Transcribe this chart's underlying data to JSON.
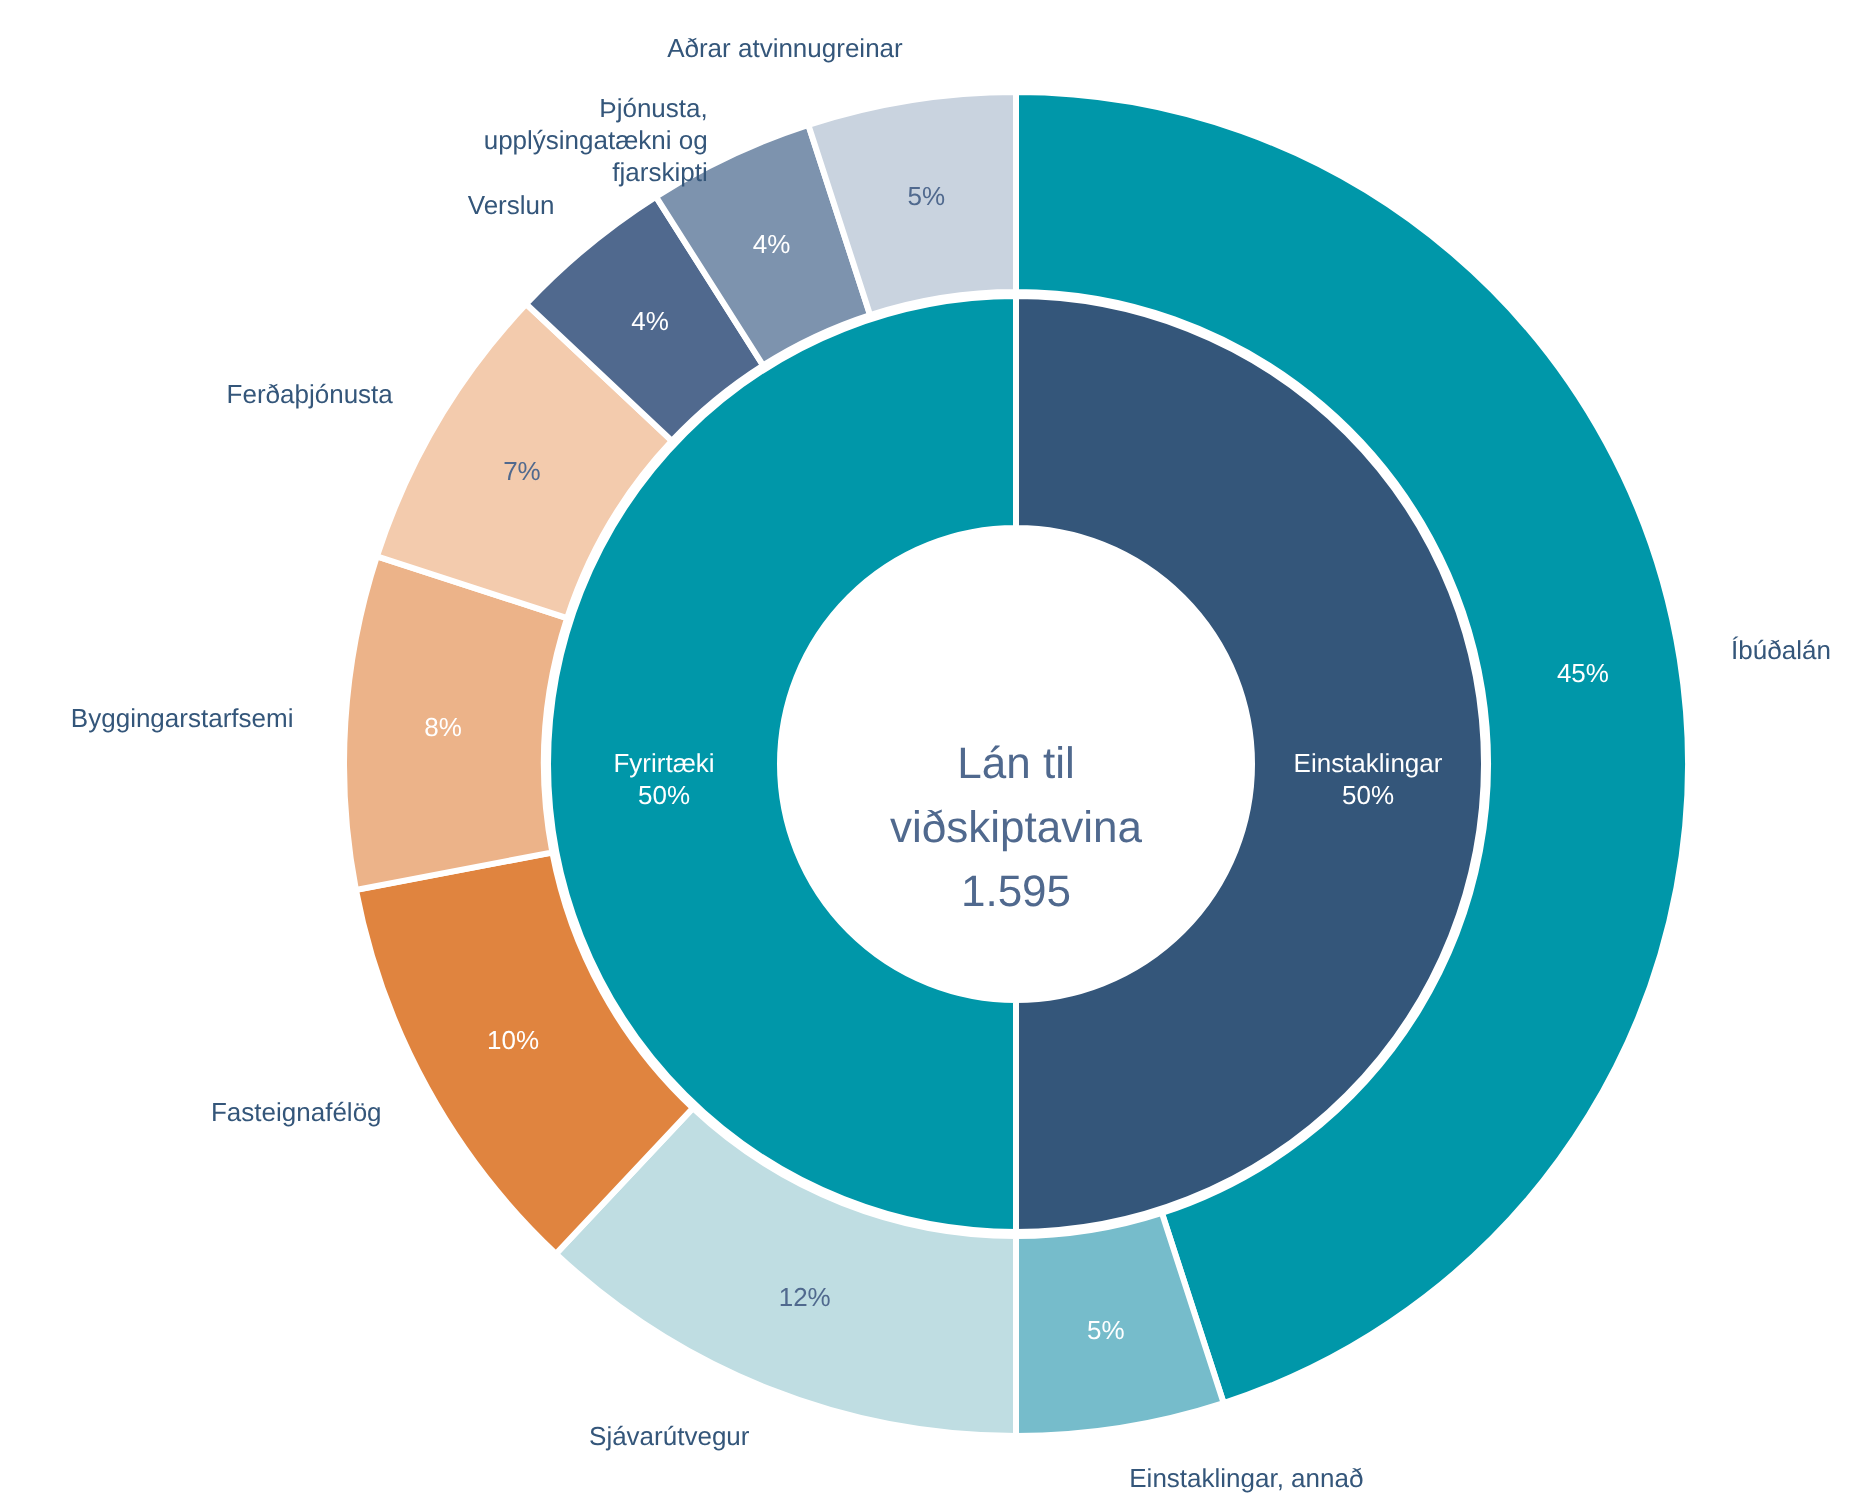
{
  "chart_data": [
    {
      "type": "donut",
      "categories": [
        "Íbúðalán",
        "Einstaklingar, annað",
        "Sjávarútvegur",
        "Fasteignafélög",
        "Byggingarstarfsemi",
        "Ferðaþjónusta",
        "Verslun",
        "Þjónusta, upplýsingatækni og fjarskipti",
        "Aðrar atvinnugreinar"
      ],
      "values": [
        45,
        5,
        12,
        10,
        8,
        7,
        4,
        4,
        5
      ],
      "value_labels": [
        "45%",
        "5%",
        "12%",
        "10%",
        "8%",
        "7%",
        "4%",
        "4%",
        "5%"
      ],
      "colors": [
        "#0097a9",
        "#76bccb",
        "#bfdde2",
        "#e0843f",
        "#ecb389",
        "#f3cbad",
        "#50698e",
        "#7d93ae",
        "#c9d3df"
      ]
    },
    {
      "type": "donut",
      "title": "Lán til viðskiptavina",
      "annotations": [
        "1.595"
      ],
      "categories": [
        "Einstaklingar",
        "Fyrirtæki"
      ],
      "values": [
        50,
        50
      ],
      "value_labels": [
        "50%",
        "50%"
      ],
      "colors": [
        "#34567a",
        "#0097a9"
      ]
    }
  ]
}
